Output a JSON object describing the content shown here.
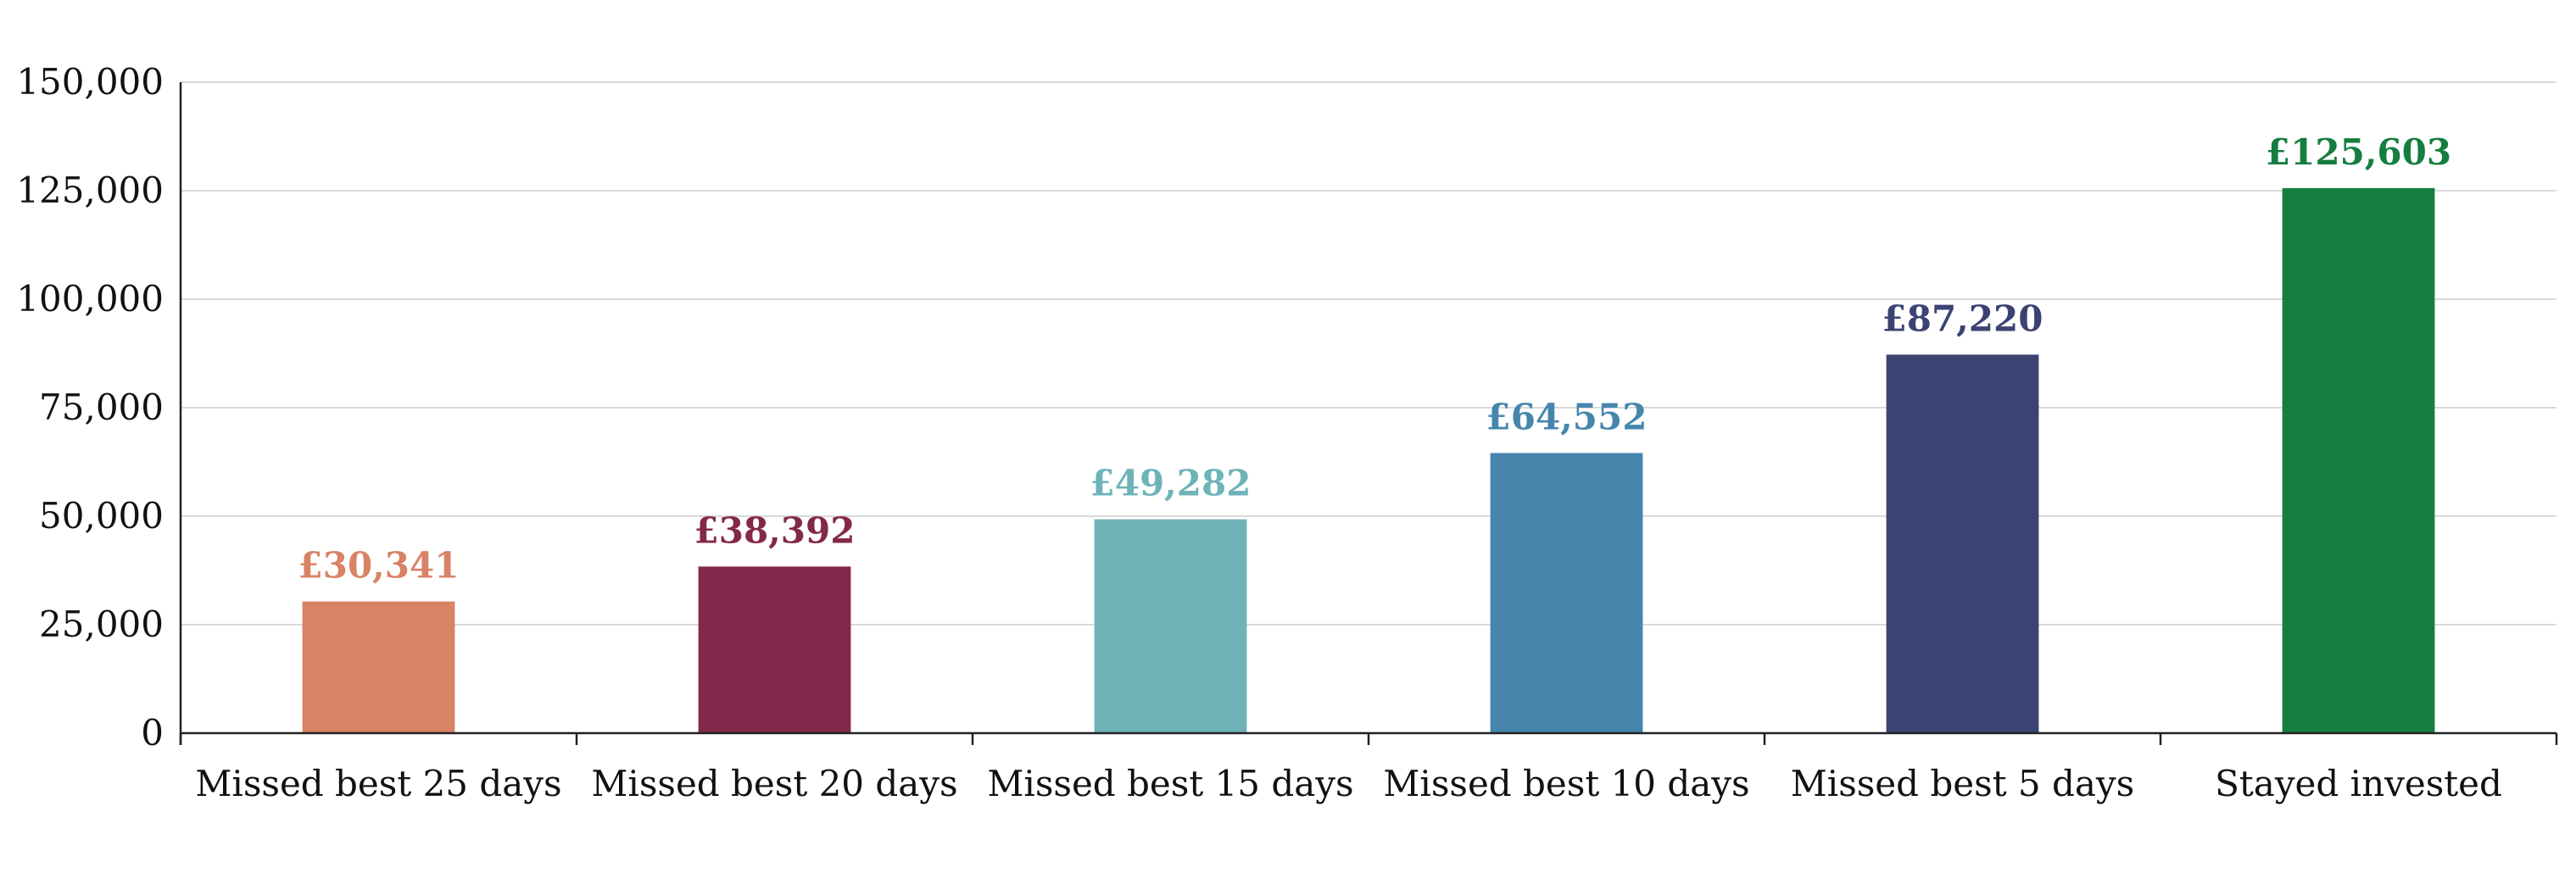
{
  "chart_data": {
    "type": "bar",
    "title": "",
    "xlabel": "",
    "ylabel": "",
    "categories": [
      "Missed best 25 days",
      "Missed best 20 days",
      "Missed best 15 days",
      "Missed best 10 days",
      "Missed best 5 days",
      "Stayed invested"
    ],
    "values": [
      30341,
      38392,
      49282,
      64552,
      87220,
      125603
    ],
    "data_labels": [
      "£30,341",
      "£38,392",
      "£49,282",
      "£64,552",
      "£87,220",
      "£125,603"
    ],
    "colors": [
      "#d88266",
      "#83284a",
      "#6db3b8",
      "#4686ad",
      "#3a4372",
      "#157e3f"
    ],
    "ylim": [
      0,
      150000
    ],
    "y_ticks": [
      0,
      25000,
      50000,
      75000,
      100000,
      125000,
      150000
    ],
    "y_tick_labels": [
      "0",
      "25,000",
      "50,000",
      "75,000",
      "100,000",
      "125,000",
      "150,000"
    ],
    "grid": true,
    "legend": "none"
  }
}
